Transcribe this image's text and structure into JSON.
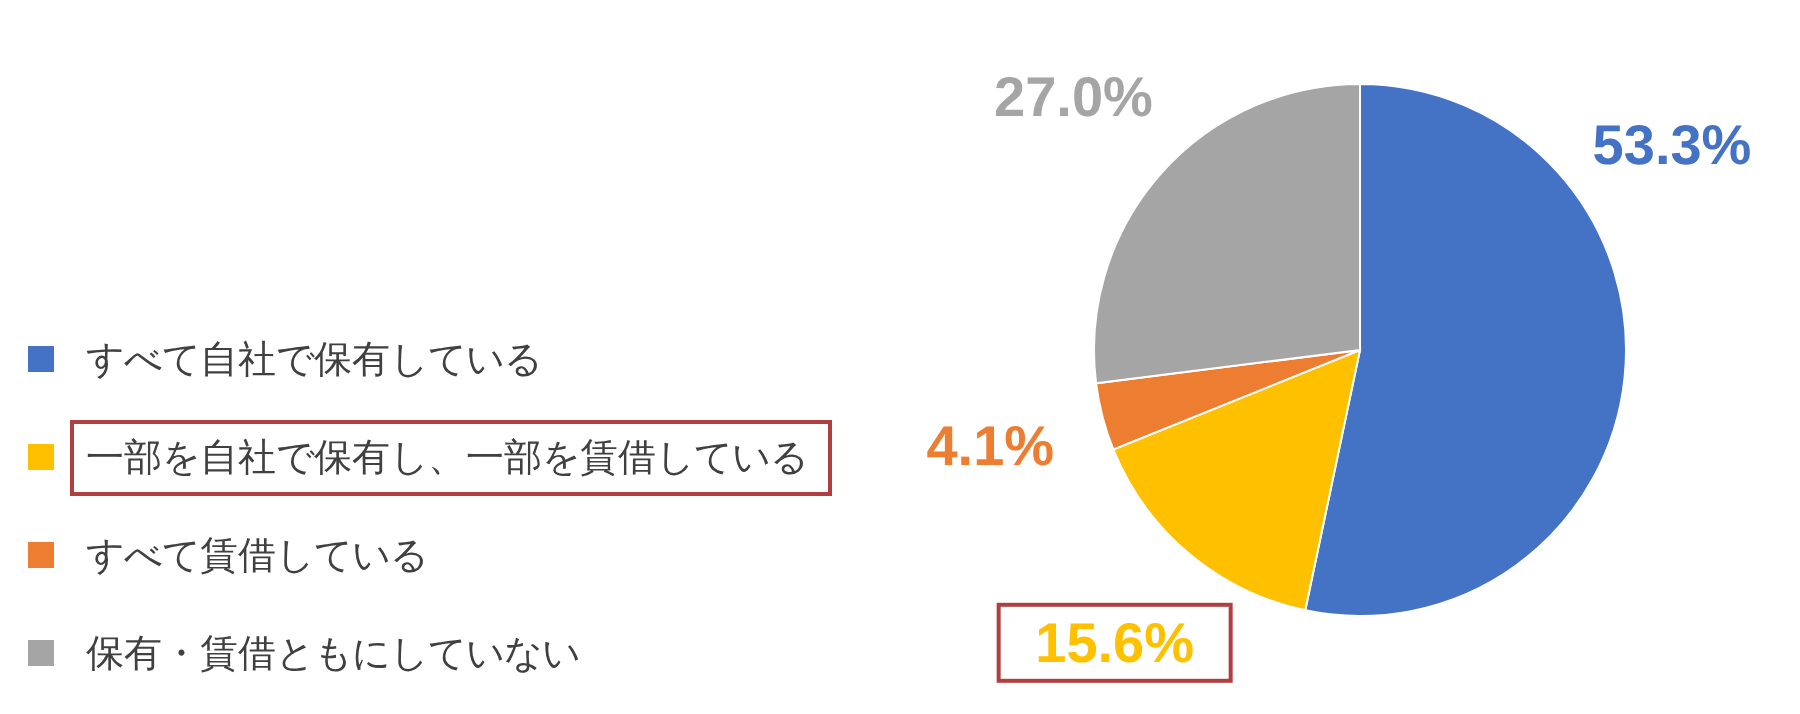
{
  "chart_data": {
    "type": "pie",
    "categories": [
      "すべて自社で保有している",
      "一部を自社で保有し、一部を賃借している",
      "すべて賃借している",
      "保有・賃借ともにしていない"
    ],
    "values": [
      53.3,
      15.6,
      4.1,
      27.0
    ],
    "colors": [
      "#4472c4",
      "#ffc000",
      "#ed7d31",
      "#a5a5a5"
    ],
    "value_labels": [
      "53.3%",
      "15.6%",
      "4.1%",
      "27.0%"
    ],
    "legend": "left"
  }
}
